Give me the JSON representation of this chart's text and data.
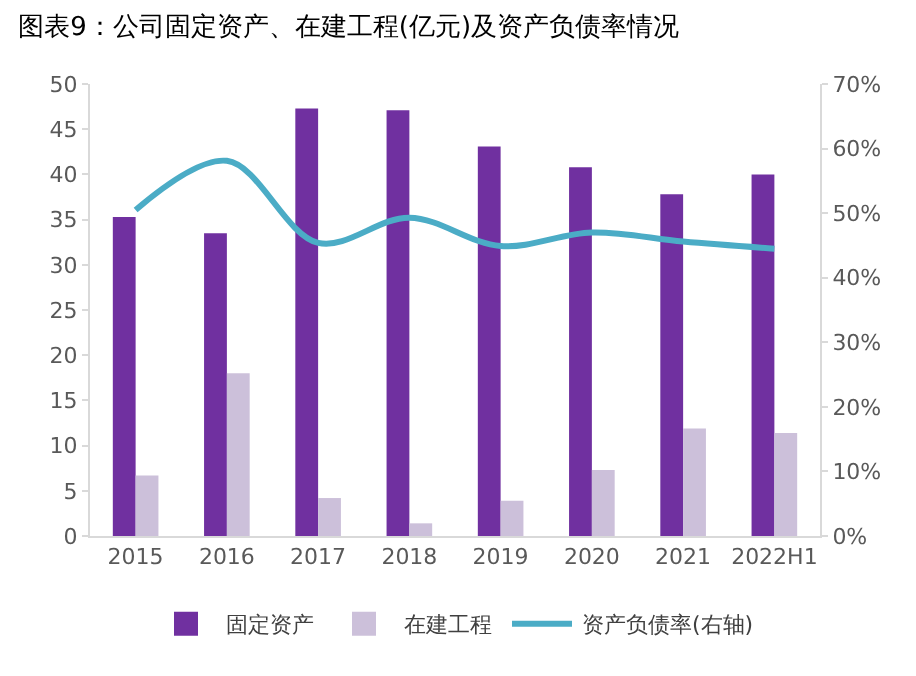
{
  "chart_data": {
    "type": "bar",
    "title": "图表9：公司固定资产、在建工程(亿元)及资产负债率情况",
    "categories": [
      "2015",
      "2016",
      "2017",
      "2018",
      "2019",
      "2020",
      "2021",
      "2022H1"
    ],
    "series": [
      {
        "name": "固定资产",
        "color": "#7030a0",
        "values": [
          35.3,
          33.5,
          47.3,
          47.1,
          43.1,
          40.8,
          37.8,
          40.0
        ]
      },
      {
        "name": "在建工程",
        "color": "#ccc0da",
        "values": [
          6.7,
          18.0,
          4.2,
          1.4,
          3.9,
          7.3,
          11.9,
          11.4
        ]
      },
      {
        "name": "资产负债率(右轴)",
        "type": "line",
        "axis": "y2",
        "color": "#4bacc6",
        "values": [
          50.5,
          58.1,
          45.4,
          49.3,
          44.9,
          47.0,
          45.6,
          44.5
        ]
      }
    ],
    "ylim": [
      0,
      50
    ],
    "yticks": [
      0,
      5,
      10,
      15,
      20,
      25,
      30,
      35,
      40,
      45,
      50
    ],
    "y2lim": [
      0,
      70
    ],
    "y2ticks": [
      {
        "value": 0,
        "label": "0%"
      },
      {
        "value": 10,
        "label": "10%"
      },
      {
        "value": 20,
        "label": "20%"
      },
      {
        "value": 30,
        "label": "30%"
      },
      {
        "value": 40,
        "label": "40%"
      },
      {
        "value": 50,
        "label": "50%"
      },
      {
        "value": 60,
        "label": "60%"
      },
      {
        "value": 70,
        "label": "70%"
      }
    ],
    "grid": false,
    "legend": "bottom",
    "marker": "none"
  }
}
